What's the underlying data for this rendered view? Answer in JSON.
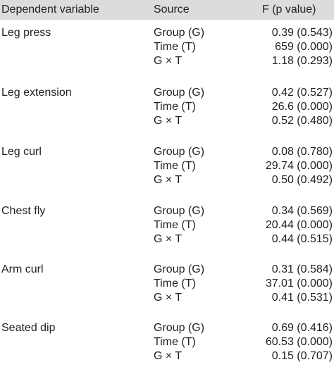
{
  "table": {
    "headers": {
      "dependent_variable": "Dependent variable",
      "source": "Source",
      "f_value": "F (p value)"
    },
    "groups": [
      {
        "variable": "Leg press",
        "rows": [
          {
            "source": "Group (G)",
            "f": "0.39 (0.543)"
          },
          {
            "source": "Time (T)",
            "f": "659 (0.000)"
          },
          {
            "source": "G × T",
            "f": "1.18 (0.293)"
          }
        ]
      },
      {
        "variable": "Leg extension",
        "rows": [
          {
            "source": "Group (G)",
            "f": "0.42 (0.527)"
          },
          {
            "source": "Time (T)",
            "f": "26.6 (0.000)"
          },
          {
            "source": "G × T",
            "f": "0.52 (0.480)"
          }
        ]
      },
      {
        "variable": "Leg curl",
        "rows": [
          {
            "source": "Group (G)",
            "f": "0.08 (0.780)"
          },
          {
            "source": "Time (T)",
            "f": "29.74 (0.000)"
          },
          {
            "source": "G × T",
            "f": "0.50 (0.492)"
          }
        ]
      },
      {
        "variable": "Chest fly",
        "rows": [
          {
            "source": "Group (G)",
            "f": "0.34 (0.569)"
          },
          {
            "source": "Time (T)",
            "f": "20.44 (0.000)"
          },
          {
            "source": "G × T",
            "f": "0.44 (0.515)"
          }
        ]
      },
      {
        "variable": "Arm curl",
        "rows": [
          {
            "source": "Group (G)",
            "f": "0.31 (0.584)"
          },
          {
            "source": "Time (T)",
            "f": "37.01 (0.000)"
          },
          {
            "source": "G × T",
            "f": "0.41 (0.531)"
          }
        ]
      },
      {
        "variable": "Seated dip",
        "rows": [
          {
            "source": "Group (G)",
            "f": "0.69 (0.416)"
          },
          {
            "source": "Time (T)",
            "f": "60.53 (0.000)"
          },
          {
            "source": "G × T",
            "f": "0.15 (0.707)"
          }
        ]
      }
    ]
  }
}
